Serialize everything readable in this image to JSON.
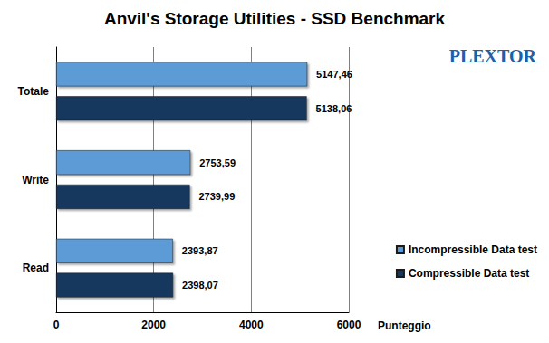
{
  "chart_data": {
    "type": "bar",
    "title": "Anvil's Storage Utilities - SSD Benchmark",
    "x_label": "Punteggio",
    "annotations": [
      "PLEXTOR"
    ],
    "orientation": "horizontal",
    "categories": [
      "Totale",
      "Write",
      "Read"
    ],
    "series": [
      {
        "name": "Incompressible Data test",
        "color": "#5b9bd5",
        "values": [
          5147.46,
          2753.59,
          2393.87
        ],
        "value_labels": [
          "5147,46",
          "2753,59",
          "2393,87"
        ]
      },
      {
        "name": "Compressible Data test",
        "color": "#17375e",
        "values": [
          5138.06,
          2739.99,
          2398.07
        ],
        "value_labels": [
          "5138,06",
          "2739,99",
          "2398,07"
        ]
      }
    ],
    "xlim": [
      0,
      6000
    ],
    "xticks": [
      0,
      2000,
      4000,
      6000
    ],
    "grid": true,
    "data_labels": true,
    "legend": "right"
  }
}
